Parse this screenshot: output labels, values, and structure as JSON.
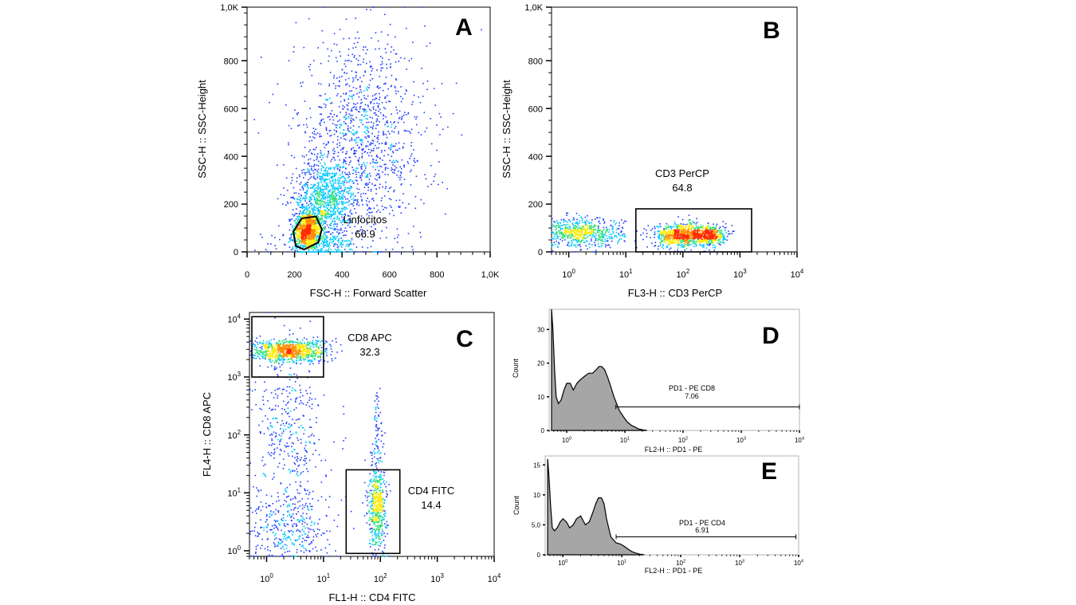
{
  "chart_data": [
    {
      "panel": "A",
      "type": "scatter",
      "xlabel": "FSC-H :: Forward Scatter",
      "ylabel": "SSC-H :: SSC-Height",
      "xscale": "linear",
      "yscale": "linear",
      "xlim": [
        0,
        1024
      ],
      "ylim": [
        0,
        1024
      ],
      "xticks": [
        {
          "v": 0,
          "l": "0"
        },
        {
          "v": 200,
          "l": "200"
        },
        {
          "v": 400,
          "l": "400"
        },
        {
          "v": 600,
          "l": "600"
        },
        {
          "v": 800,
          "l": "800"
        },
        {
          "v": 1024,
          "l": "1,0K"
        }
      ],
      "yticks": [
        {
          "v": 0,
          "l": "0"
        },
        {
          "v": 200,
          "l": "200"
        },
        {
          "v": 400,
          "l": "400"
        },
        {
          "v": 600,
          "l": "600"
        },
        {
          "v": 800,
          "l": "800"
        },
        {
          "v": 1024,
          "l": "1,0K"
        }
      ],
      "gates": [
        {
          "shape": "polygon",
          "label": "Linfocitos",
          "value": "66.9",
          "label_pos": [
            440,
            145
          ],
          "points": [
            [
              195,
              85
            ],
            [
              230,
              140
            ],
            [
              290,
              148
            ],
            [
              315,
              95
            ],
            [
              300,
              40
            ],
            [
              240,
              10
            ],
            [
              205,
              25
            ]
          ]
        }
      ],
      "clusters": [
        {
          "cx": 255,
          "cy": 90,
          "sx": 30,
          "sy": 40,
          "n": 900
        },
        {
          "cx": 330,
          "cy": 220,
          "sx": 60,
          "sy": 80,
          "n": 900
        },
        {
          "cx": 480,
          "cy": 450,
          "sx": 140,
          "sy": 220,
          "n": 1300
        },
        {
          "cx": 300,
          "cy": 30,
          "sx": 80,
          "sy": 25,
          "n": 250
        }
      ]
    },
    {
      "panel": "B",
      "type": "scatter",
      "xlabel": "FL3-H :: CD3 PerCP",
      "ylabel": "SSC-H :: SSC-Height",
      "xscale": "log",
      "yscale": "linear",
      "xlim": [
        0.5,
        10000
      ],
      "ylim": [
        0,
        1024
      ],
      "xticks": [
        {
          "v": 1,
          "l": "10",
          "e": "0"
        },
        {
          "v": 10,
          "l": "10",
          "e": "1"
        },
        {
          "v": 100,
          "l": "10",
          "e": "2"
        },
        {
          "v": 1000,
          "l": "10",
          "e": "3"
        },
        {
          "v": 10000,
          "l": "10",
          "e": "4"
        }
      ],
      "yticks": [
        {
          "v": 0,
          "l": "0"
        },
        {
          "v": 200,
          "l": "200"
        },
        {
          "v": 400,
          "l": "400"
        },
        {
          "v": 600,
          "l": "600"
        },
        {
          "v": 800,
          "l": "800"
        },
        {
          "v": 1024,
          "l": "1,0K"
        }
      ],
      "gates": [
        {
          "shape": "rect",
          "label": "CD3 PerCP",
          "value": "64.8",
          "x": [
            15,
            1600
          ],
          "y": [
            0,
            180
          ],
          "label_pos": [
            120,
            270
          ]
        }
      ],
      "clusters": [
        {
          "lx": 0.2,
          "cy": 80,
          "sx": 0.38,
          "sy": 30,
          "n": 700
        },
        {
          "lx": 1.95,
          "cy": 70,
          "sx": 0.22,
          "sy": 25,
          "n": 700
        },
        {
          "lx": 2.45,
          "cy": 70,
          "sx": 0.15,
          "sy": 22,
          "n": 500
        }
      ]
    },
    {
      "panel": "C",
      "type": "scatter",
      "xlabel": "FL1-H :: CD4 FITC",
      "ylabel": "FL4-H :: CD8 APC",
      "xscale": "log",
      "yscale": "log",
      "xlim": [
        0.5,
        10000
      ],
      "ylim": [
        0.8,
        13000
      ],
      "xticks": [
        {
          "v": 1,
          "l": "10",
          "e": "0"
        },
        {
          "v": 10,
          "l": "10",
          "e": "1"
        },
        {
          "v": 100,
          "l": "10",
          "e": "2"
        },
        {
          "v": 1000,
          "l": "10",
          "e": "3"
        },
        {
          "v": 10000,
          "l": "10",
          "e": "4"
        }
      ],
      "yticks": [
        {
          "v": 1,
          "l": "10",
          "e": "0"
        },
        {
          "v": 10,
          "l": "10",
          "e": "1"
        },
        {
          "v": 100,
          "l": "10",
          "e": "2"
        },
        {
          "v": 1000,
          "l": "10",
          "e": "3"
        },
        {
          "v": 10000,
          "l": "10",
          "e": "4"
        }
      ],
      "gates": [
        {
          "shape": "rect",
          "label": "CD8 APC",
          "value": "32.3",
          "x": [
            0.55,
            10
          ],
          "y": [
            1000,
            11000
          ],
          "label_pos": [
            80,
            3000
          ]
        },
        {
          "shape": "rect",
          "label": "CD4 FITC",
          "value": "14.4",
          "x": [
            25,
            220
          ],
          "y": [
            0.9,
            25
          ],
          "label_pos": [
            1500,
            7
          ]
        }
      ],
      "clusters": [
        {
          "lx": 0.4,
          "ly": 3.45,
          "sx": 0.35,
          "sy": 0.1,
          "n": 900
        },
        {
          "lx": 0.4,
          "ly": 2.0,
          "sx": 0.3,
          "sy": 0.7,
          "n": 400
        },
        {
          "lx": 0.4,
          "ly": 0.35,
          "sx": 0.35,
          "sy": 0.3,
          "n": 350
        },
        {
          "lx": 1.95,
          "ly": 0.8,
          "sx": 0.08,
          "sy": 0.4,
          "n": 550
        },
        {
          "lx": 1.95,
          "ly": 2.1,
          "sx": 0.05,
          "sy": 0.3,
          "n": 60
        }
      ]
    },
    {
      "panel": "D",
      "type": "area",
      "xlabel": "FL2-H :: PD1 - PE",
      "ylabel": "Count",
      "xscale": "log",
      "xlim": [
        0.5,
        10000
      ],
      "ylim": [
        0,
        36
      ],
      "xticks": [
        {
          "v": 1,
          "l": "10",
          "e": "0"
        },
        {
          "v": 10,
          "l": "10",
          "e": "1"
        },
        {
          "v": 100,
          "l": "10",
          "e": "2"
        },
        {
          "v": 1000,
          "l": "10",
          "e": "3"
        },
        {
          "v": 10000,
          "l": "10",
          "e": "4"
        }
      ],
      "yticks": [
        {
          "v": 0,
          "l": "0"
        },
        {
          "v": 10,
          "l": "10"
        },
        {
          "v": 20,
          "l": "20"
        },
        {
          "v": 30,
          "l": "30"
        }
      ],
      "x": [
        0.55,
        0.58,
        0.62,
        0.66,
        0.72,
        0.8,
        0.9,
        1.0,
        1.15,
        1.3,
        1.5,
        1.7,
        2.0,
        2.4,
        2.8,
        3.2,
        3.6,
        4.0,
        4.5,
        5.0,
        5.5,
        6.5,
        8,
        9.5,
        11,
        13,
        15,
        17,
        20,
        24
      ],
      "counts": [
        36,
        30,
        18,
        10,
        8,
        9,
        12,
        14,
        14,
        12,
        14,
        15,
        16,
        17,
        17,
        18,
        19,
        19,
        18,
        16,
        14,
        10,
        6,
        4,
        2.5,
        1.5,
        1,
        0.5,
        0.2,
        0
      ],
      "marker": {
        "label": "PD1 - PE CD8",
        "value": "7.06",
        "x": [
          7,
          10000
        ],
        "y": 7
      }
    },
    {
      "panel": "E",
      "type": "area",
      "xlabel": "FL2-H :: PD1 - PE",
      "ylabel": "Count",
      "xscale": "log",
      "xlim": [
        0.5,
        10000
      ],
      "ylim": [
        0,
        16.5
      ],
      "xticks": [
        {
          "v": 1,
          "l": "10",
          "e": "0"
        },
        {
          "v": 10,
          "l": "10",
          "e": "1"
        },
        {
          "v": 100,
          "l": "10",
          "e": "2"
        },
        {
          "v": 1000,
          "l": "10",
          "e": "3"
        },
        {
          "v": 10000,
          "l": "10",
          "e": "4"
        }
      ],
      "yticks": [
        {
          "v": 0,
          "l": "0"
        },
        {
          "v": 5,
          "l": "5,0"
        },
        {
          "v": 10,
          "l": "10"
        },
        {
          "v": 15,
          "l": "15"
        }
      ],
      "x": [
        0.55,
        0.58,
        0.62,
        0.66,
        0.72,
        0.8,
        0.9,
        1.0,
        1.15,
        1.3,
        1.5,
        1.7,
        2.0,
        2.4,
        2.8,
        3.2,
        3.6,
        4.0,
        4.5,
        5.0,
        5.5,
        6.5,
        8,
        9.5,
        11,
        13,
        15,
        17,
        20,
        24
      ],
      "counts": [
        16,
        13,
        8,
        4.5,
        4,
        4.5,
        5.5,
        6,
        5.5,
        4.5,
        5,
        6,
        6.5,
        5,
        5.5,
        7,
        8.5,
        9.5,
        9.5,
        8.5,
        6,
        3,
        2,
        1.8,
        1.4,
        0.9,
        0.5,
        0.3,
        0.1,
        0
      ],
      "marker": {
        "label": "PD1 - PE CD4",
        "value": "6.91",
        "x": [
          8,
          9000
        ],
        "y": 3
      }
    }
  ],
  "panels": {
    "a": {
      "letter": "A",
      "xlabel": "FSC-H :: Forward Scatter",
      "ylabel": "SSC-H :: SSC-Height",
      "gate_label": "Linfocitos",
      "gate_value": "66.9"
    },
    "b": {
      "letter": "B",
      "xlabel": "FL3-H :: CD3 PerCP",
      "ylabel": "SSC-H :: SSC-Height",
      "gate_label": "CD3 PerCP",
      "gate_value": "64.8"
    },
    "c": {
      "letter": "C",
      "xlabel": "FL1-H :: CD4 FITC",
      "ylabel": "FL4-H :: CD8 APC",
      "gate1_label": "CD8 APC",
      "gate1_value": "32.3",
      "gate2_label": "CD4 FITC",
      "gate2_value": "14.4"
    },
    "d": {
      "letter": "D",
      "xlabel": "FL2-H :: PD1 - PE",
      "ylabel": "Count",
      "marker_label": "PD1 - PE CD8",
      "marker_value": "7.06"
    },
    "e": {
      "letter": "E",
      "xlabel": "FL2-H :: PD1 - PE",
      "ylabel": "Count",
      "marker_label": "PD1 - PE CD4",
      "marker_value": "6.91"
    }
  },
  "colors": {
    "density_low": "#1f3cff",
    "density_mid": "#00c8ff",
    "density_high": "#ffea00",
    "density_peak": "#ff2a00",
    "histogram_fill": "#a6a6a6",
    "line": "#000000"
  }
}
